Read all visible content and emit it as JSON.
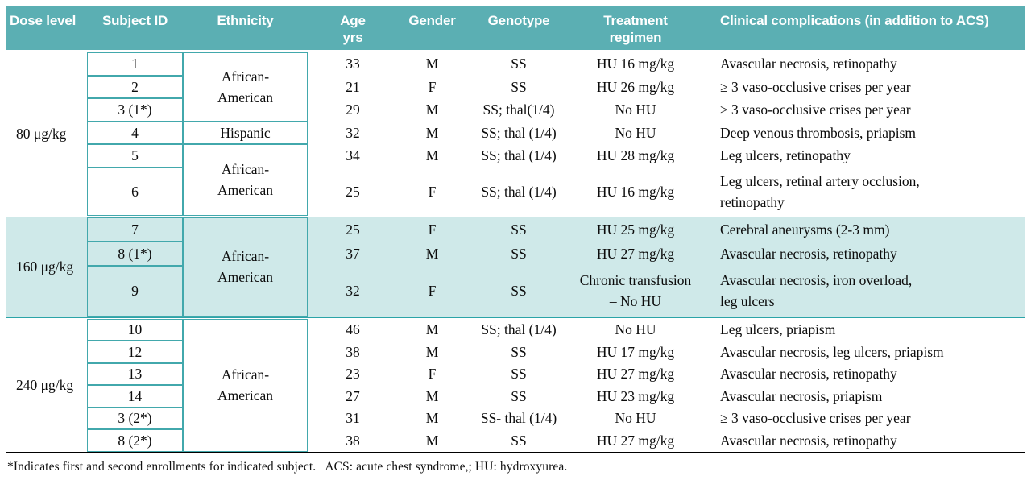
{
  "colors": {
    "header_bg": "#5bafb3",
    "highlight_bg": "#cfe9e9",
    "box_border": "#42a8ac",
    "underline": "#2ba4a8"
  },
  "table": {
    "header": {
      "dose": "Dose level",
      "subject": "Subject ID",
      "ethnicity": "Ethnicity",
      "age": "Age\nyrs",
      "gender": "Gender",
      "genotype": "Genotype",
      "treatment": "Treatment\nregimen",
      "complications": "Clinical complications (in addition to ACS)"
    },
    "groups": [
      {
        "dose": "80 μg/kg",
        "highlight": false,
        "ethnicity_spans": [
          {
            "label": "African-\nAmerican",
            "rows": 3
          },
          {
            "label": "Hispanic",
            "rows": 1
          },
          {
            "label": "African-\nAmerican",
            "rows": 2
          }
        ],
        "rows": [
          {
            "subject": "1",
            "age": "33",
            "gender": "M",
            "genotype": "SS",
            "treatment": "HU 16 mg/kg",
            "complications": "Avascular necrosis, retinopathy"
          },
          {
            "subject": "2",
            "age": "21",
            "gender": "F",
            "genotype": "SS",
            "treatment": "HU 26 mg/kg",
            "complications": "≥ 3 vaso-occlusive crises per year"
          },
          {
            "subject": "3 (1*)",
            "age": "29",
            "gender": "M",
            "genotype": "SS; thal(1/4)",
            "treatment": "No HU",
            "complications": "≥ 3 vaso-occlusive crises per year"
          },
          {
            "subject": "4",
            "age": "32",
            "gender": "M",
            "genotype": "SS; thal (1/4)",
            "treatment": "No HU",
            "complications": "Deep venous thrombosis, priapism"
          },
          {
            "subject": "5",
            "age": "34",
            "gender": "M",
            "genotype": "SS; thal (1/4)",
            "treatment": "HU 28 mg/kg",
            "complications": "Leg ulcers, retinopathy"
          },
          {
            "subject": "6",
            "age": "25",
            "gender": "F",
            "genotype": "SS; thal (1/4)",
            "treatment": "HU 16 mg/kg",
            "complications": "Leg ulcers, retinal artery occlusion,\nretinopathy"
          }
        ]
      },
      {
        "dose": "160 μg/kg",
        "highlight": true,
        "ethnicity_spans": [
          {
            "label": "African-\nAmerican",
            "rows": 3
          }
        ],
        "rows": [
          {
            "subject": "7",
            "age": "25",
            "gender": "F",
            "genotype": "SS",
            "treatment": "HU 25 mg/kg",
            "complications": "Cerebral aneurysms (2-3 mm)"
          },
          {
            "subject": "8 (1*)",
            "age": "37",
            "gender": "M",
            "genotype": "SS",
            "treatment": "HU 27 mg/kg",
            "complications": "Avascular necrosis, retinopathy"
          },
          {
            "subject": "9",
            "age": "32",
            "gender": "F",
            "genotype": "SS",
            "treatment": "Chronic transfusion\n– No HU",
            "complications": "Avascular necrosis, iron overload,\nleg ulcers"
          }
        ]
      },
      {
        "dose": "240 μg/kg",
        "highlight": false,
        "ethnicity_spans": [
          {
            "label": "African-\nAmerican",
            "rows": 6
          }
        ],
        "rows": [
          {
            "subject": "10",
            "age": "46",
            "gender": "M",
            "genotype": "SS; thal (1/4)",
            "treatment": "No HU",
            "complications": "Leg ulcers, priapism"
          },
          {
            "subject": "12",
            "age": "38",
            "gender": "M",
            "genotype": "SS",
            "treatment": "HU 17 mg/kg",
            "complications": "Avascular necrosis, leg ulcers, priapism"
          },
          {
            "subject": "13",
            "age": "23",
            "gender": "F",
            "genotype": "SS",
            "treatment": "HU 27 mg/kg",
            "complications": "Avascular necrosis, retinopathy"
          },
          {
            "subject": "14",
            "age": "27",
            "gender": "M",
            "genotype": "SS",
            "treatment": "HU 23 mg/kg",
            "complications": "Avascular necrosis, priapism"
          },
          {
            "subject": "3 (2*)",
            "age": "31",
            "gender": "M",
            "genotype": "SS- thal (1/4)",
            "treatment": "No HU",
            "complications": "≥ 3 vaso-occlusive crises per year"
          },
          {
            "subject": "8 (2*)",
            "age": "38",
            "gender": "M",
            "genotype": "SS",
            "treatment": "HU 27 mg/kg",
            "complications": "Avascular necrosis, retinopathy"
          }
        ]
      }
    ],
    "footnote": "*Indicates first and second enrollments for indicated subject.   ACS: acute chest syndrome,; HU: hydroxyurea."
  }
}
